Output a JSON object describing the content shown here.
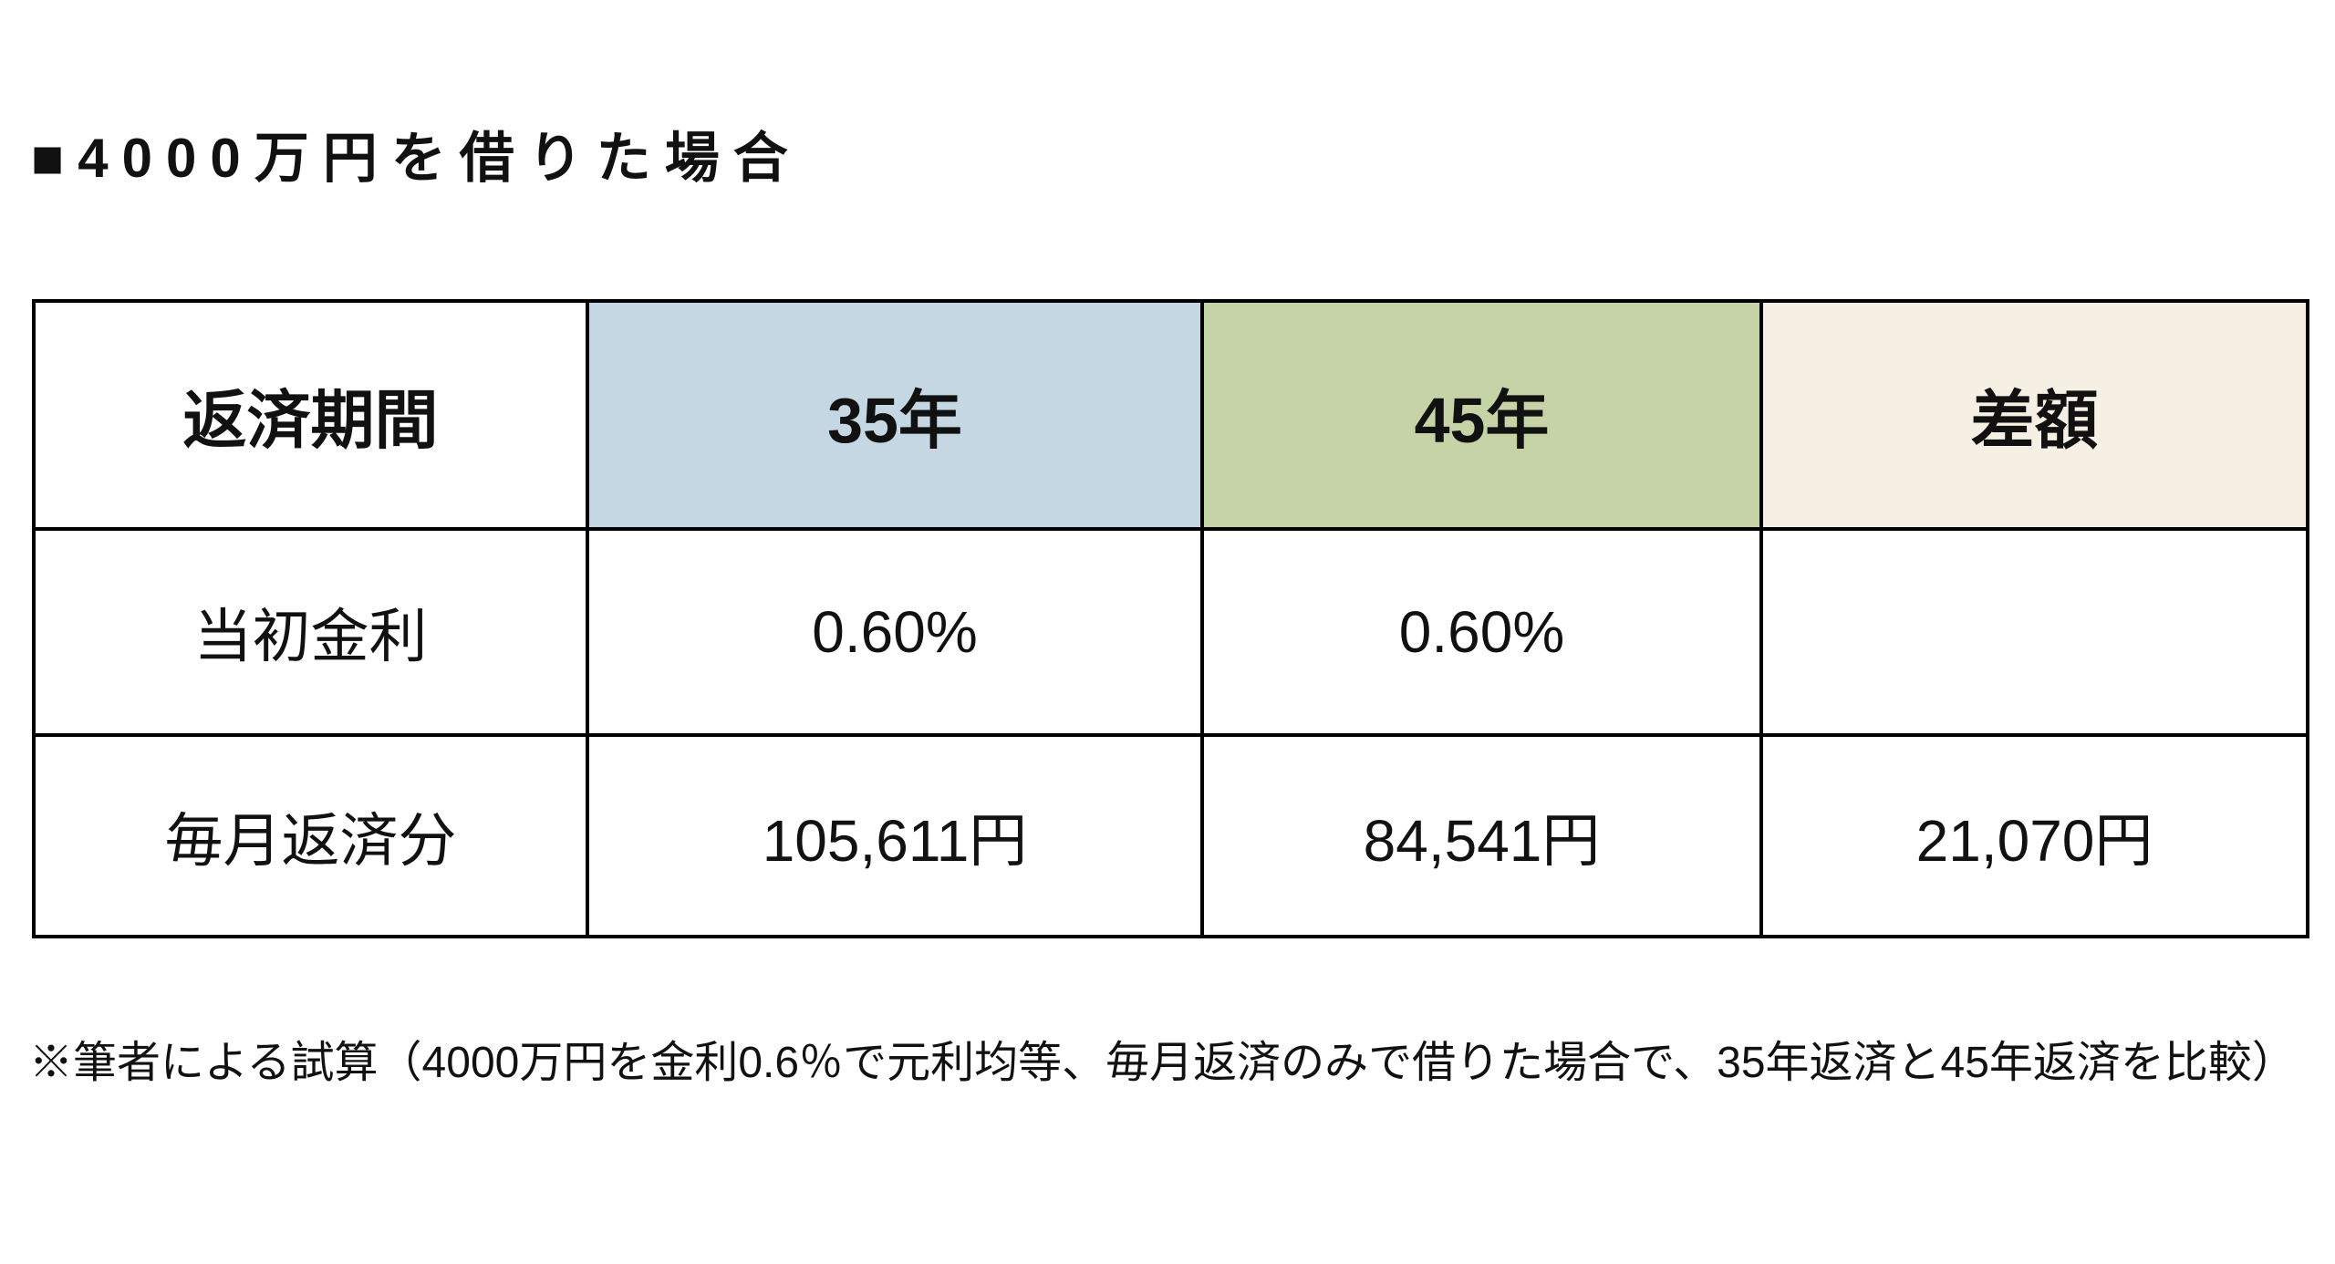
{
  "page": {
    "title": "■4000万円を借りた場合",
    "footnote": "※筆者による試算（4000万円を金利0.6％で元利均等、毎月返済のみで借りた場合で、35年返済と45年返済を比較）",
    "background_color": "#ffffff",
    "border_color": "#000000",
    "text_color": "#111111"
  },
  "table": {
    "columns": [
      {
        "key": "period",
        "label": "返済期間",
        "bg": "#ffffff"
      },
      {
        "key": "y35",
        "label": "35年",
        "bg": "#c4d7e2"
      },
      {
        "key": "y45",
        "label": "45年",
        "bg": "#c6d3a6"
      },
      {
        "key": "diff",
        "label": "差額",
        "bg": "#f6efe3"
      }
    ],
    "rows": [
      {
        "label": "当初金利",
        "y35": "0.60%",
        "y45": "0.60%",
        "diff": ""
      },
      {
        "label": "毎月返済分",
        "y35": "105,611円",
        "y45": "84,541円",
        "diff": "21,070円"
      }
    ]
  }
}
